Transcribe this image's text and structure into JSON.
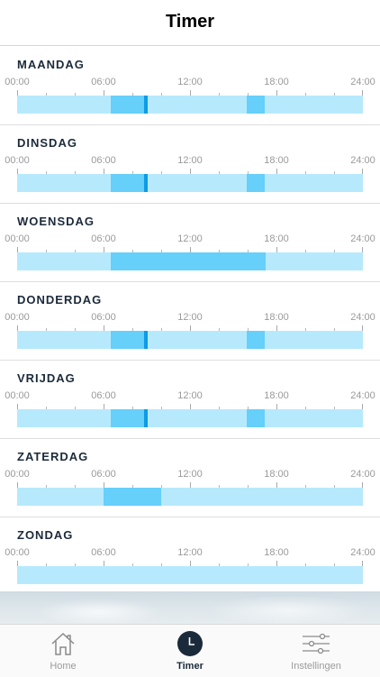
{
  "header": {
    "title": "Timer"
  },
  "time_labels": [
    "00:00",
    "06:00",
    "12:00",
    "18:00",
    "24:00"
  ],
  "days": [
    {
      "name": "MAANDAG",
      "segments": [
        [
          6.5,
          8.85
        ],
        [
          15.95,
          17.2
        ]
      ],
      "markers": [
        8.95
      ]
    },
    {
      "name": "DINSDAG",
      "segments": [
        [
          6.5,
          8.85
        ],
        [
          15.95,
          17.2
        ]
      ],
      "markers": [
        8.95
      ]
    },
    {
      "name": "WOENSDAG",
      "segments": [
        [
          6.5,
          17.25
        ]
      ],
      "markers": []
    },
    {
      "name": "DONDERDAG",
      "segments": [
        [
          6.5,
          8.85
        ],
        [
          15.95,
          17.2
        ]
      ],
      "markers": [
        8.95
      ]
    },
    {
      "name": "VRIJDAG",
      "segments": [
        [
          6.5,
          8.85
        ],
        [
          15.95,
          17.2
        ]
      ],
      "markers": [
        8.95
      ]
    },
    {
      "name": "ZATERDAG",
      "segments": [
        [
          6.0,
          10.0
        ]
      ],
      "markers": []
    },
    {
      "name": "ZONDAG",
      "segments": [],
      "markers": []
    }
  ],
  "tabs": [
    {
      "label": "Home",
      "icon": "house-icon",
      "active": false
    },
    {
      "label": "Timer",
      "icon": "clock-icon",
      "active": true
    },
    {
      "label": "Instellingen",
      "icon": "sliders-icon",
      "active": false
    }
  ],
  "colors": {
    "track": "#b7e9fd",
    "segment": "#66cffa",
    "marker": "#0d9be6",
    "active_tab": "#1b2a3a"
  }
}
